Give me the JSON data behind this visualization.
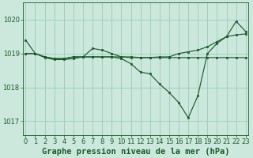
{
  "background_color": "#cce8dd",
  "grid_color": "#99ccbb",
  "line_color": "#1a5c28",
  "marker_color": "#1a5c28",
  "xlabel": "Graphe pression niveau de la mer (hPa)",
  "xlabel_fontsize": 7.5,
  "tick_fontsize": 6.0,
  "yticks": [
    1017,
    1018,
    1019,
    1020
  ],
  "xticks": [
    0,
    1,
    2,
    3,
    4,
    5,
    6,
    7,
    8,
    9,
    10,
    11,
    12,
    13,
    14,
    15,
    16,
    17,
    18,
    19,
    20,
    21,
    22,
    23
  ],
  "ylim": [
    1016.6,
    1020.5
  ],
  "xlim": [
    -0.3,
    23.3
  ],
  "series_down": [
    1019.4,
    1019.0,
    1018.88,
    1018.82,
    1018.82,
    1018.85,
    1018.9,
    1018.9,
    1018.9,
    1018.9,
    1018.85,
    1018.7,
    1018.45,
    1018.4,
    1018.1,
    1017.85,
    1017.55,
    1017.1,
    1017.75,
    1019.0,
    1019.3,
    1019.5,
    1019.95,
    1019.65
  ],
  "series_flat": [
    1019.0,
    1019.0,
    1018.9,
    1018.85,
    1018.85,
    1018.9,
    1018.9,
    1018.9,
    1018.9,
    1018.9,
    1018.9,
    1018.9,
    1018.88,
    1018.88,
    1018.88,
    1018.88,
    1018.88,
    1018.88,
    1018.88,
    1018.88,
    1018.88,
    1018.88,
    1018.88,
    1018.88
  ],
  "series_rise": [
    1019.0,
    1019.0,
    1018.9,
    1018.85,
    1018.85,
    1018.9,
    1018.9,
    1019.15,
    1019.1,
    1019.0,
    1018.9,
    1018.88,
    1018.88,
    1018.88,
    1018.9,
    1018.9,
    1019.0,
    1019.05,
    1019.1,
    1019.2,
    1019.35,
    1019.5,
    1019.55,
    1019.58
  ]
}
